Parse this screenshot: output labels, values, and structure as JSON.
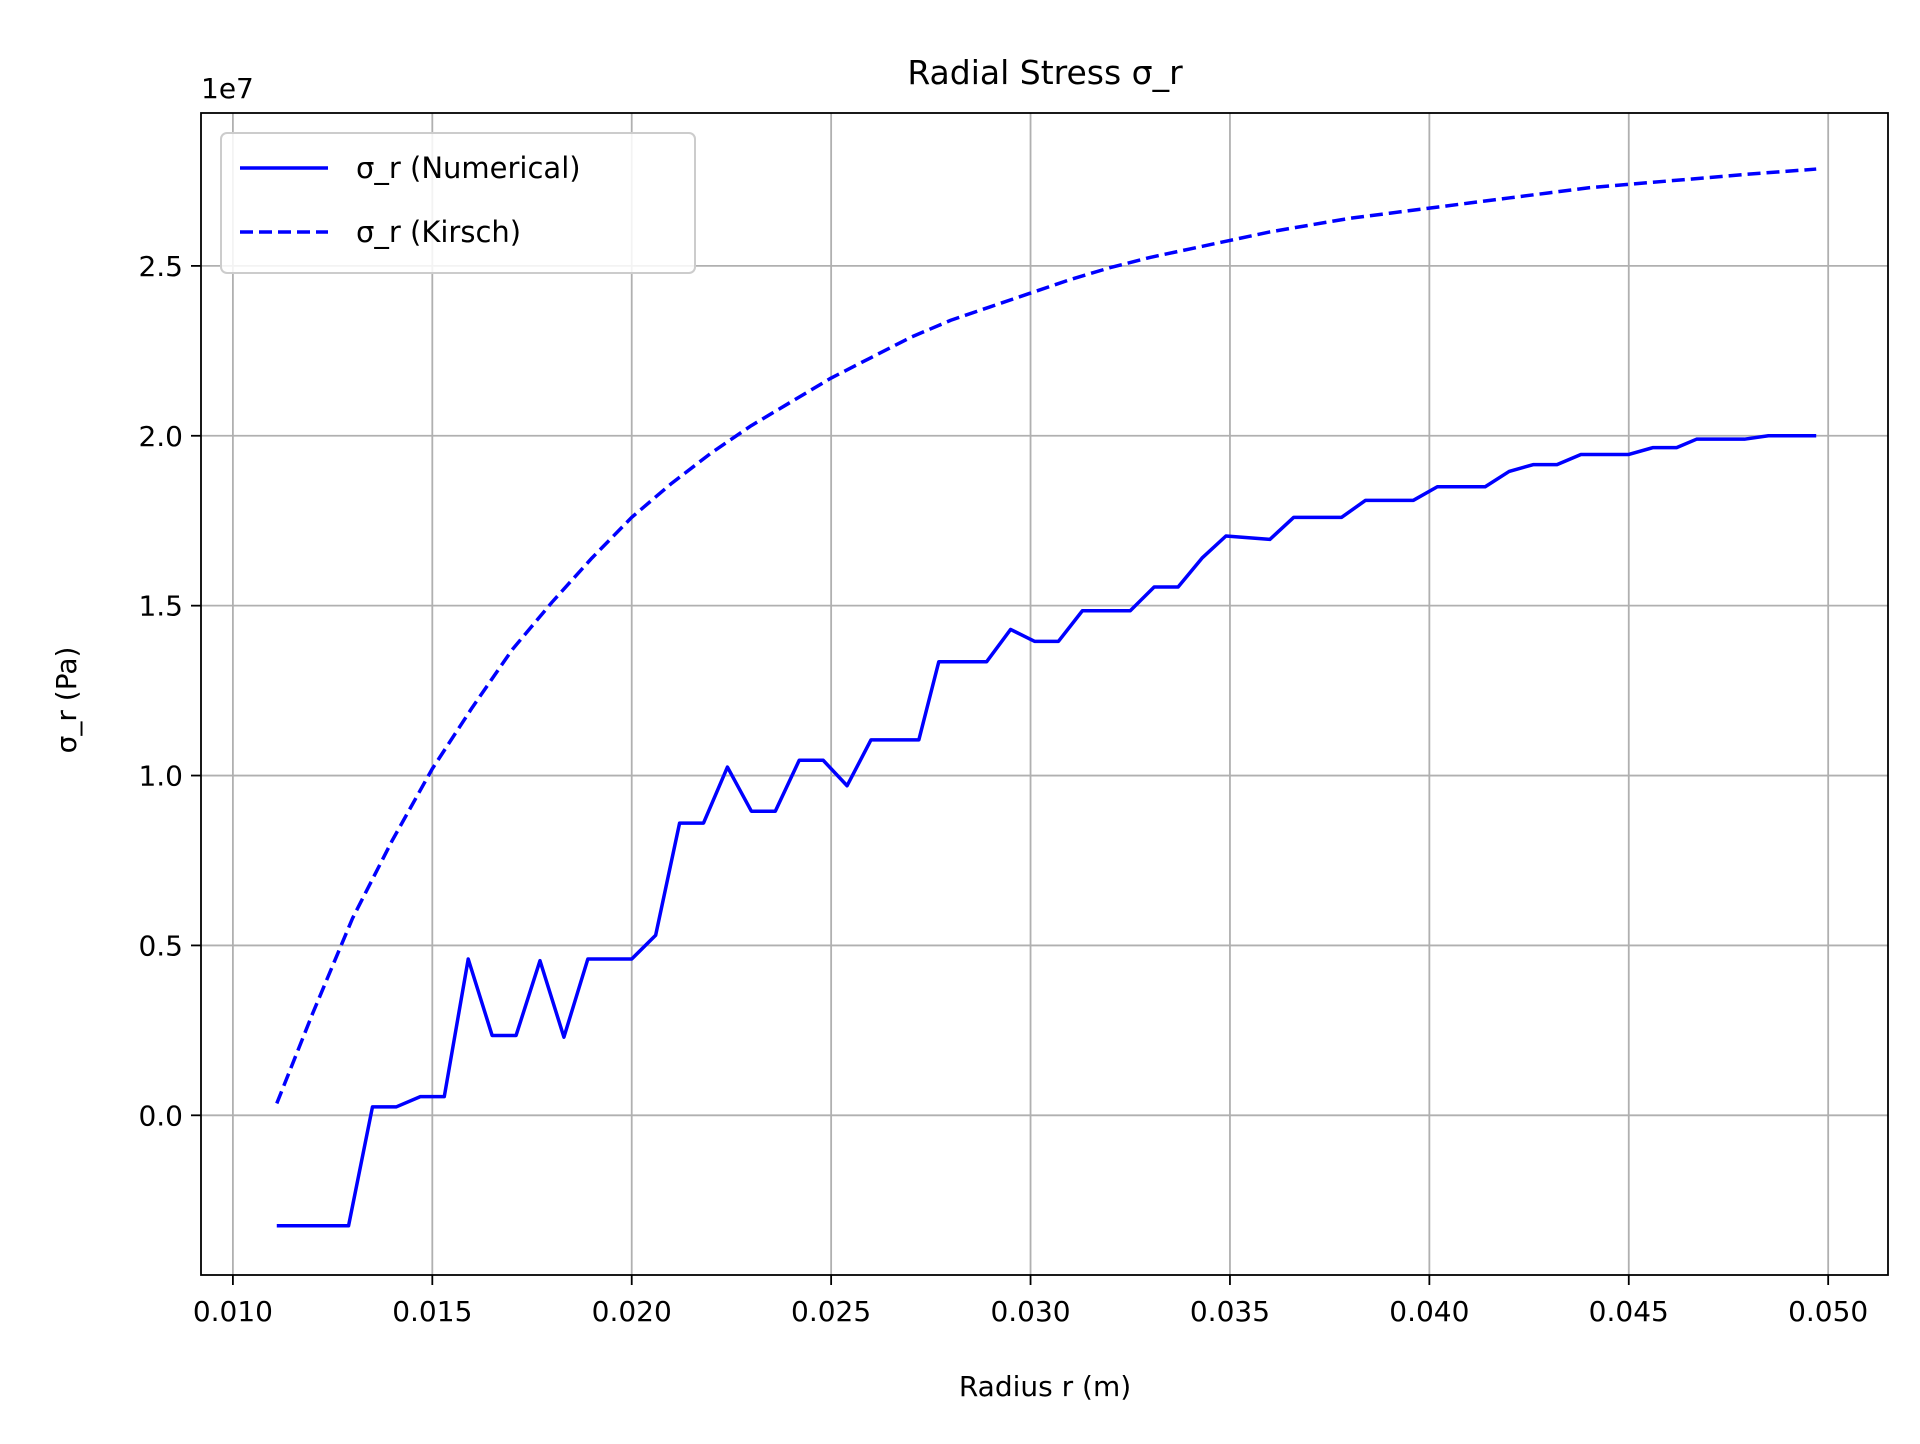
{
  "chart_data": {
    "type": "line",
    "title": "Radial Stress σ_r",
    "xlabel": "Radius r (m)",
    "ylabel": "σ_r (Pa)",
    "y_offset_label": "1e7",
    "y_scale_factor": 10000000,
    "xlim": [
      0.0092,
      0.0515
    ],
    "ylim": [
      -4700000,
      29500000
    ],
    "x_ticks": [
      {
        "value": 0.01,
        "label": "0.010"
      },
      {
        "value": 0.015,
        "label": "0.015"
      },
      {
        "value": 0.02,
        "label": "0.020"
      },
      {
        "value": 0.025,
        "label": "0.025"
      },
      {
        "value": 0.03,
        "label": "0.030"
      },
      {
        "value": 0.035,
        "label": "0.035"
      },
      {
        "value": 0.04,
        "label": "0.040"
      },
      {
        "value": 0.045,
        "label": "0.045"
      },
      {
        "value": 0.05,
        "label": "0.050"
      }
    ],
    "y_ticks": [
      {
        "value": 0,
        "label": "0.0"
      },
      {
        "value": 5000000,
        "label": "0.5"
      },
      {
        "value": 10000000,
        "label": "1.0"
      },
      {
        "value": 15000000,
        "label": "1.5"
      },
      {
        "value": 20000000,
        "label": "2.0"
      },
      {
        "value": 25000000,
        "label": "2.5"
      }
    ],
    "grid": true,
    "legend_position": "top-left",
    "series": [
      {
        "name": "σ_r (Numerical)",
        "color": "#0000ff",
        "style": "solid",
        "x": [
          0.0111,
          0.0129,
          0.0135,
          0.0141,
          0.0147,
          0.0153,
          0.0159,
          0.0165,
          0.0171,
          0.0177,
          0.0183,
          0.0189,
          0.02,
          0.0206,
          0.0212,
          0.0218,
          0.0224,
          0.023,
          0.0236,
          0.0242,
          0.0248,
          0.0254,
          0.026,
          0.0272,
          0.0277,
          0.0289,
          0.0295,
          0.0301,
          0.0307,
          0.0313,
          0.0325,
          0.0331,
          0.0337,
          0.0343,
          0.0349,
          0.036,
          0.0366,
          0.0378,
          0.0384,
          0.0396,
          0.0402,
          0.0414,
          0.042,
          0.0426,
          0.0432,
          0.0438,
          0.045,
          0.0456,
          0.0462,
          0.0467,
          0.0479,
          0.0485,
          0.0497
        ],
        "y": [
          -3250000,
          -3250000,
          250000,
          250000,
          550000,
          550000,
          4600000,
          2350000,
          2350000,
          4550000,
          2300000,
          4600000,
          4600000,
          5300000,
          8600000,
          8600000,
          10250000,
          8950000,
          8950000,
          10450000,
          10450000,
          9700000,
          11050000,
          11050000,
          13350000,
          13350000,
          14300000,
          13950000,
          13950000,
          14850000,
          14850000,
          15550000,
          15550000,
          16400000,
          17050000,
          16950000,
          17600000,
          17600000,
          18100000,
          18100000,
          18500000,
          18500000,
          18950000,
          19150000,
          19150000,
          19450000,
          19450000,
          19650000,
          19650000,
          19900000,
          19900000,
          20000000,
          20000000
        ]
      },
      {
        "name": "σ_r (Kirsch)",
        "color": "#0000ff",
        "style": "dashed",
        "x": [
          0.0111,
          0.012,
          0.013,
          0.014,
          0.015,
          0.016,
          0.017,
          0.018,
          0.019,
          0.02,
          0.021,
          0.022,
          0.023,
          0.024,
          0.025,
          0.026,
          0.027,
          0.028,
          0.029,
          0.03,
          0.031,
          0.032,
          0.033,
          0.034,
          0.035,
          0.036,
          0.037,
          0.038,
          0.039,
          0.04,
          0.041,
          0.042,
          0.043,
          0.044,
          0.045,
          0.046,
          0.047,
          0.048,
          0.0497
        ],
        "y": [
          350000,
          3000000,
          5800000,
          8100000,
          10200000,
          12000000,
          13700000,
          15100000,
          16400000,
          17600000,
          18600000,
          19500000,
          20300000,
          21000000,
          21700000,
          22300000,
          22900000,
          23400000,
          23800000,
          24200000,
          24600000,
          24950000,
          25250000,
          25500000,
          25750000,
          26000000,
          26200000,
          26400000,
          26550000,
          26700000,
          26850000,
          27000000,
          27150000,
          27300000,
          27400000,
          27500000,
          27600000,
          27700000,
          27850000
        ]
      }
    ]
  }
}
